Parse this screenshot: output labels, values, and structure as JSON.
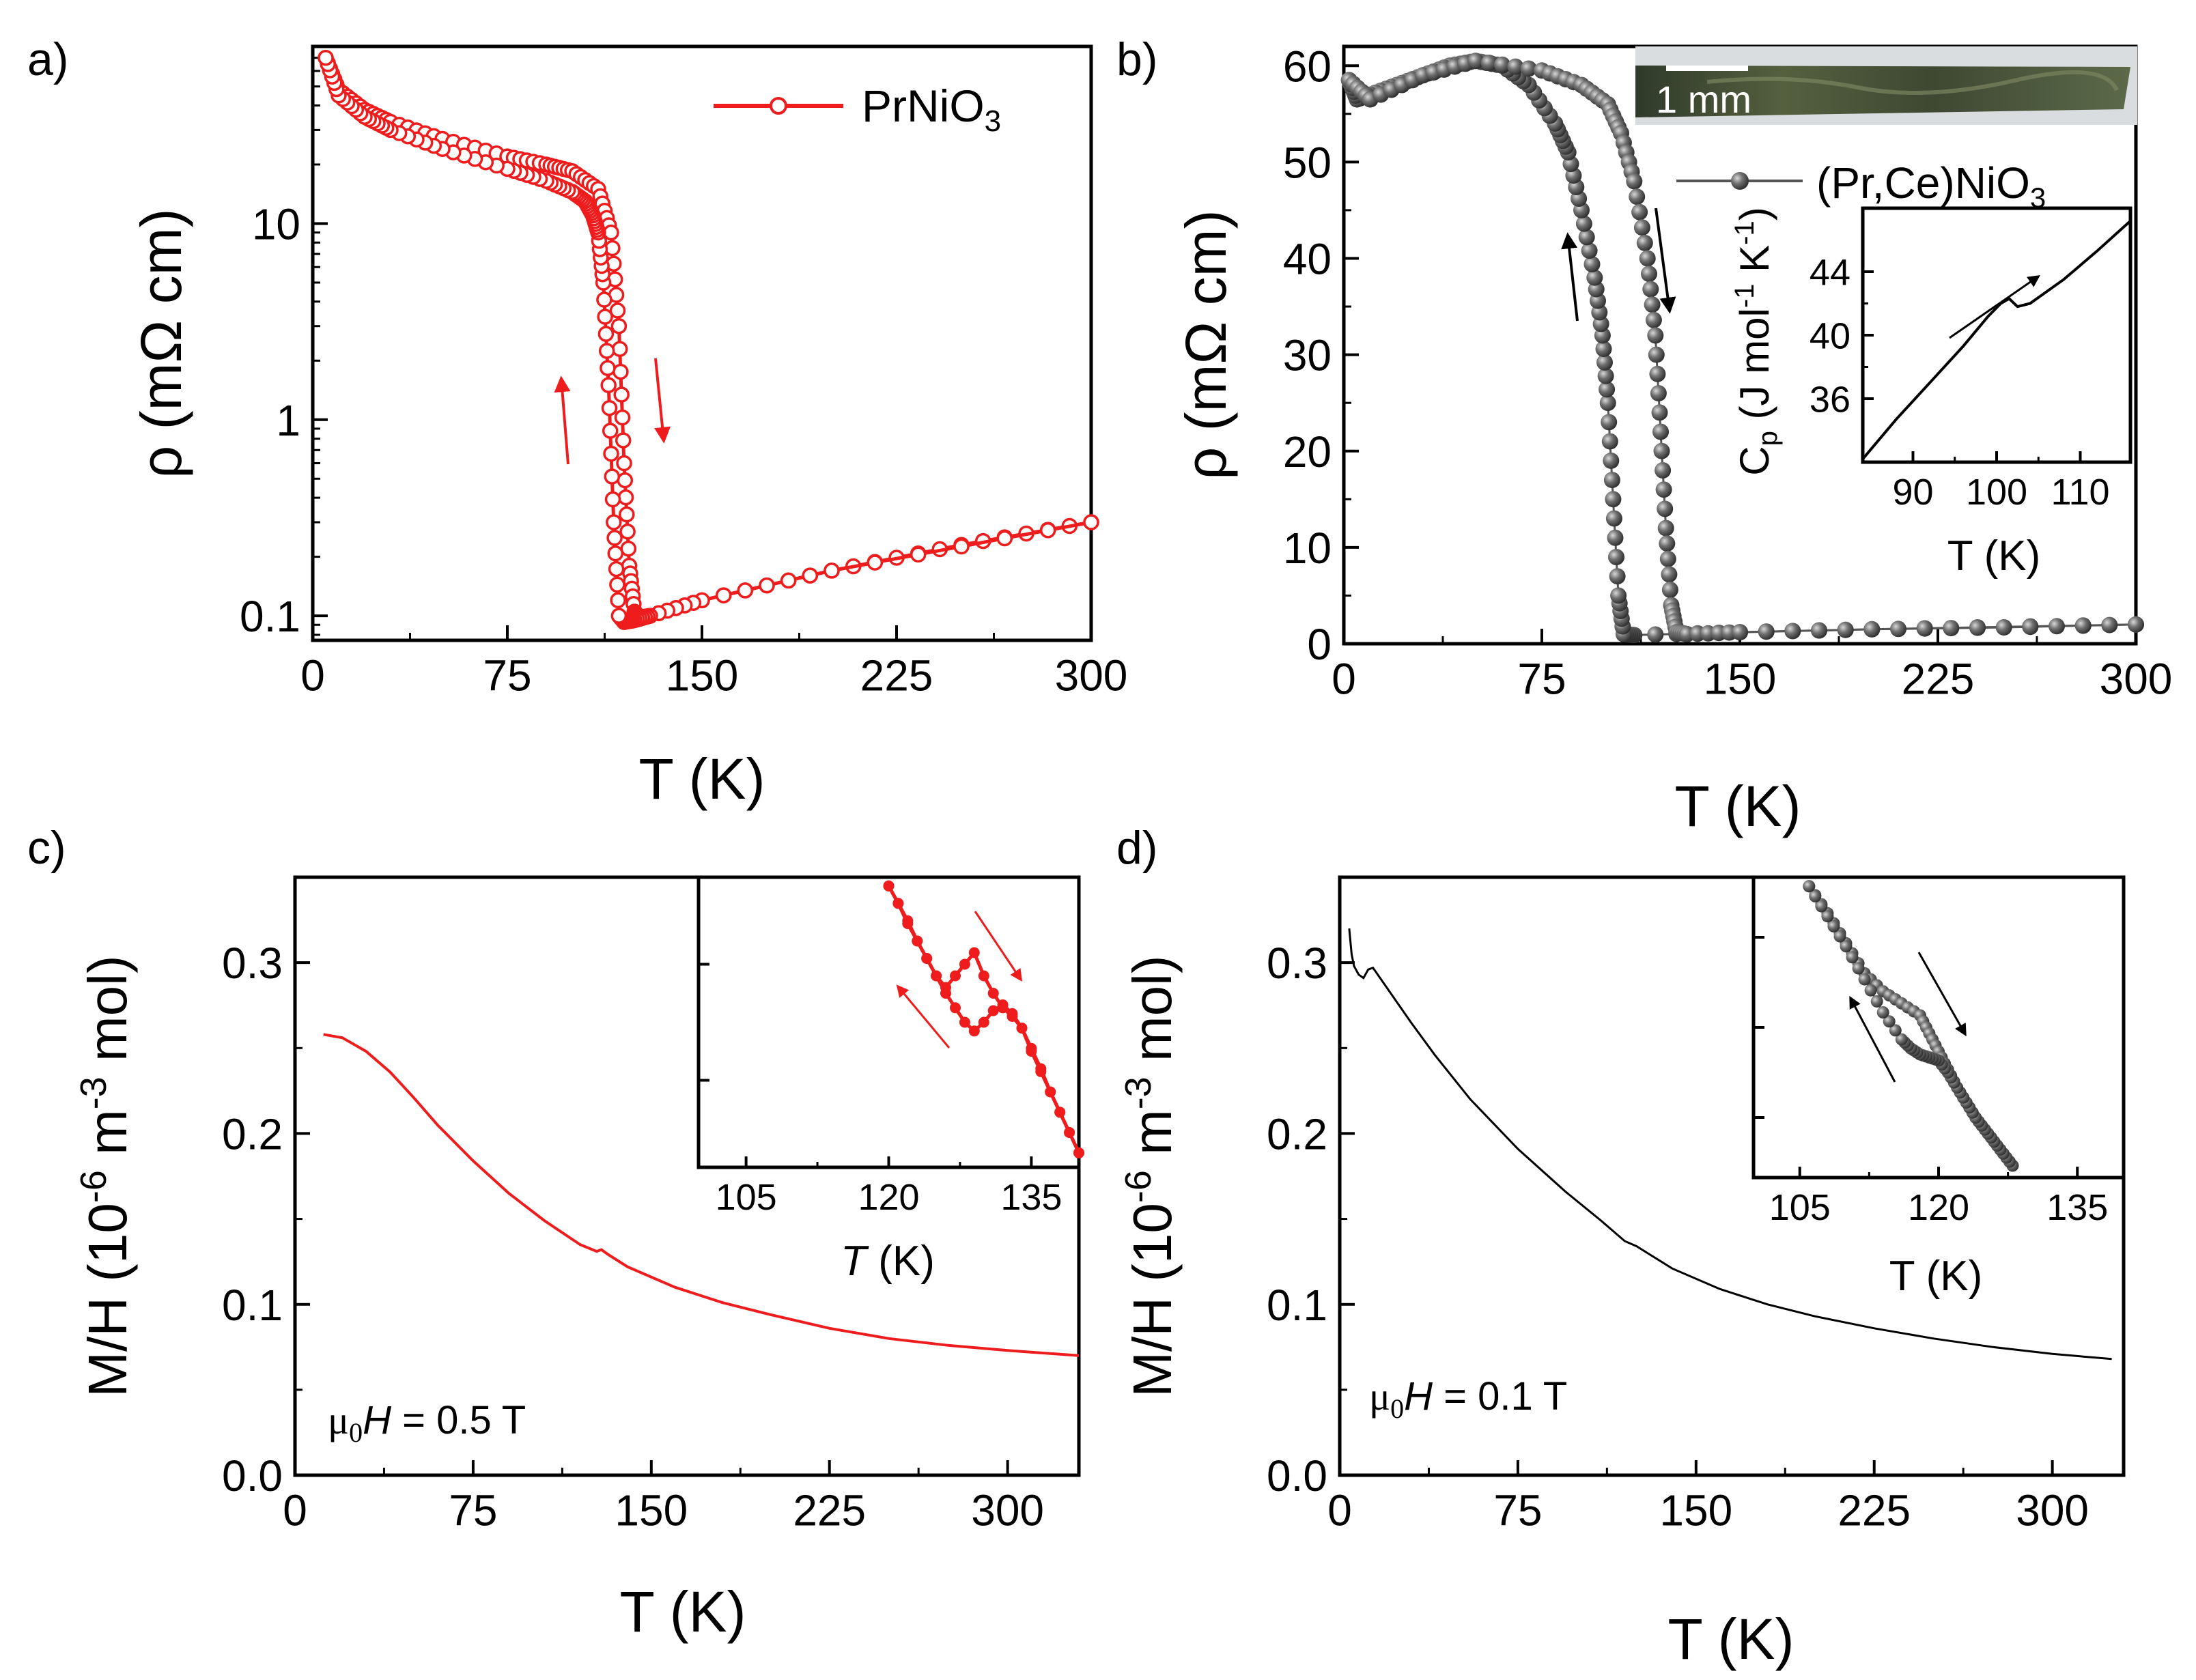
{
  "colors": {
    "red": "#ee1c1c",
    "gray": "#555555",
    "black": "#000000",
    "photo": "#3c4a34"
  },
  "chart_data": [
    {
      "id": "a",
      "panel_label": "a)",
      "type": "scatter",
      "scale": "log",
      "xlabel": "T (K)",
      "ylabel": "ρ (mΩ cm)",
      "xlim": [
        0,
        300
      ],
      "ylim": [
        0.075,
        80
      ],
      "xticks": [
        0,
        75,
        150,
        225,
        300
      ],
      "xtick_labels": [
        "0",
        "75",
        "150",
        "225",
        "300"
      ],
      "yticks": [
        0.1,
        1,
        10
      ],
      "ytick_labels": [
        "0.1",
        "1",
        "10"
      ],
      "legend": {
        "label_main": "PrNiO",
        "label_sub": "3",
        "position": "top-right"
      },
      "series": [
        {
          "name": "warming",
          "x": [
            5,
            10,
            20,
            30,
            50,
            75,
            90,
            100,
            110,
            115,
            118,
            120,
            122,
            124,
            126,
            130,
            150,
            200,
            250,
            300
          ],
          "y": [
            70,
            48,
            38,
            33,
            27,
            22,
            20,
            18.5,
            15,
            9,
            3,
            0.6,
            0.18,
            0.105,
            0.098,
            0.1,
            0.12,
            0.17,
            0.23,
            0.3
          ]
        },
        {
          "name": "cooling",
          "x": [
            300,
            200,
            150,
            130,
            124,
            120,
            118,
            116,
            114,
            112,
            110,
            108,
            105,
            100,
            90,
            75,
            50,
            30,
            20,
            10,
            5
          ],
          "y": [
            0.3,
            0.17,
            0.12,
            0.1,
            0.095,
            0.093,
            0.1,
            0.3,
            1.5,
            5,
            9,
            11,
            13,
            14.5,
            16.5,
            19,
            24,
            30,
            35,
            45,
            70
          ]
        }
      ],
      "annotations": [
        "warming arrow (down)",
        "cooling arrow (up)"
      ]
    },
    {
      "id": "b",
      "panel_label": "b)",
      "type": "scatter",
      "xlabel": "T (K)",
      "ylabel": "ρ (mΩ cm)",
      "xlim": [
        0,
        300
      ],
      "ylim": [
        0,
        62
      ],
      "xticks": [
        0,
        75,
        150,
        225,
        300
      ],
      "xtick_labels": [
        "0",
        "75",
        "150",
        "225",
        "300"
      ],
      "yticks": [
        0,
        10,
        20,
        30,
        40,
        50,
        60
      ],
      "ytick_labels": [
        "0",
        "10",
        "20",
        "30",
        "40",
        "50",
        "60"
      ],
      "legend": {
        "label": "(Pr,Ce)NiO",
        "label_sub": "3",
        "position": "top-right"
      },
      "photo_scale_label": "1 mm",
      "series": [
        {
          "name": "cooling",
          "x": [
            300,
            200,
            150,
            110,
            106,
            104,
            102,
            100,
            98,
            95,
            90,
            85,
            80,
            70,
            60,
            50,
            40,
            30,
            20,
            10,
            5,
            2
          ],
          "y": [
            2,
            1.5,
            1.2,
            0.9,
            1,
            5,
            15,
            25,
            32,
            38,
            45,
            51,
            54,
            58,
            60,
            60.5,
            60,
            59,
            58,
            57,
            56.5,
            58.5
          ]
        },
        {
          "name": "warming",
          "x": [
            2,
            10,
            30,
            50,
            75,
            90,
            100,
            105,
            110,
            115,
            118,
            120,
            122,
            124,
            126,
            130,
            150,
            200,
            250,
            300
          ],
          "y": [
            58.5,
            56.5,
            59,
            60.5,
            59.5,
            58,
            56,
            53,
            48,
            40,
            32,
            22,
            12,
            4,
            1.2,
            1,
            1.2,
            1.5,
            1.7,
            2
          ]
        }
      ]
    },
    {
      "id": "b_inset",
      "type": "line",
      "xlabel": "T (K)",
      "ylabel_main": "C",
      "ylabel_sub": "p",
      "ylabel_rest": " (J mol",
      "ylabel_sup1": "-1",
      "ylabel_mid": " K",
      "ylabel_sup2": "-1",
      "ylabel_end": ")",
      "xlim": [
        84,
        116
      ],
      "ylim": [
        32,
        48
      ],
      "xticks": [
        90,
        100,
        110
      ],
      "xtick_labels": [
        "90",
        "100",
        "110"
      ],
      "yticks": [
        36,
        40,
        44
      ],
      "ytick_labels": [
        "36",
        "40",
        "44"
      ],
      "x": [
        84,
        88,
        92,
        96,
        99,
        100.5,
        101.5,
        102.5,
        104,
        108,
        112,
        116
      ],
      "y": [
        32.2,
        34.7,
        37.0,
        39.3,
        41.2,
        42.0,
        42.3,
        41.8,
        42.0,
        43.5,
        45.3,
        47.2
      ]
    },
    {
      "id": "c",
      "panel_label": "c)",
      "type": "line",
      "xlabel": "T (K)",
      "ylabel_pre": "M/H (10",
      "ylabel_sup1": "-6",
      "ylabel_mid": " m",
      "ylabel_sup2": "-3",
      "ylabel_end": " mol)",
      "xlim": [
        0,
        330
      ],
      "ylim": [
        0,
        0.35
      ],
      "xticks": [
        0,
        75,
        150,
        225,
        300
      ],
      "xtick_labels": [
        "0",
        "75",
        "150",
        "225",
        "300"
      ],
      "yticks": [
        0,
        0.1,
        0.2,
        0.3
      ],
      "ytick_labels": [
        "0.0",
        "0.1",
        "0.2",
        "0.3"
      ],
      "field_mu": "μ",
      "field_sub": "0",
      "field_H": "H",
      "field_value": " = 0.5 T",
      "x": [
        12,
        20,
        30,
        40,
        50,
        60,
        75,
        90,
        105,
        120,
        127,
        129,
        132,
        140,
        160,
        180,
        200,
        225,
        250,
        275,
        300,
        330
      ],
      "y": [
        0.258,
        0.256,
        0.248,
        0.236,
        0.221,
        0.205,
        0.184,
        0.165,
        0.149,
        0.135,
        0.131,
        0.132,
        0.129,
        0.122,
        0.11,
        0.101,
        0.094,
        0.086,
        0.08,
        0.076,
        0.073,
        0.07
      ]
    },
    {
      "id": "c_inset",
      "type": "scatter",
      "xlabel_T": "T",
      "xlabel_rest": " (K)",
      "xlim": [
        100,
        140
      ],
      "ylim": [
        0,
        1
      ],
      "xticks": [
        105,
        120,
        135
      ],
      "xtick_labels": [
        "105",
        "120",
        "135"
      ],
      "series": [
        {
          "name": "warming",
          "x": [
            120,
            121,
            122,
            123,
            124,
            125,
            126,
            127,
            128,
            129,
            130,
            131,
            132,
            133,
            134,
            135,
            136,
            137,
            138,
            139,
            140
          ],
          "y": [
            0.97,
            0.91,
            0.85,
            0.78,
            0.72,
            0.66,
            0.62,
            0.66,
            0.7,
            0.74,
            0.66,
            0.6,
            0.55,
            0.52,
            0.48,
            0.41,
            0.34,
            0.26,
            0.19,
            0.12,
            0.05
          ]
        },
        {
          "name": "cooling",
          "x": [
            140,
            139,
            138,
            137,
            136,
            135,
            134,
            133,
            132,
            131,
            130,
            129,
            128,
            127,
            126,
            125,
            124,
            123,
            122,
            121,
            120
          ],
          "y": [
            0.05,
            0.12,
            0.19,
            0.26,
            0.33,
            0.4,
            0.48,
            0.53,
            0.56,
            0.54,
            0.5,
            0.47,
            0.5,
            0.55,
            0.6,
            0.66,
            0.72,
            0.78,
            0.84,
            0.91,
            0.97
          ]
        }
      ]
    },
    {
      "id": "d",
      "panel_label": "d)",
      "type": "line",
      "xlabel": "T (K)",
      "ylabel_pre": "M/H (10",
      "ylabel_sup1": "-6",
      "ylabel_mid": " m",
      "ylabel_sup2": "-3",
      "ylabel_end": " mol)",
      "xlim": [
        0,
        330
      ],
      "ylim": [
        0,
        0.35
      ],
      "xticks": [
        0,
        75,
        150,
        225,
        300
      ],
      "xtick_labels": [
        "0",
        "75",
        "150",
        "225",
        "300"
      ],
      "yticks": [
        0,
        0.1,
        0.2,
        0.3
      ],
      "ytick_labels": [
        "0.0",
        "0.1",
        "0.2",
        "0.3"
      ],
      "field_mu": "μ",
      "field_sub": "0",
      "field_H": "H",
      "field_value": " = 0.1 T",
      "x": [
        4,
        5,
        6,
        8,
        10,
        12,
        14,
        20,
        30,
        40,
        55,
        75,
        95,
        110,
        120,
        125,
        140,
        160,
        180,
        200,
        225,
        250,
        275,
        300,
        325
      ],
      "y": [
        0.32,
        0.305,
        0.298,
        0.293,
        0.291,
        0.296,
        0.297,
        0.285,
        0.265,
        0.246,
        0.22,
        0.191,
        0.166,
        0.149,
        0.137,
        0.134,
        0.121,
        0.109,
        0.1,
        0.093,
        0.086,
        0.08,
        0.075,
        0.071,
        0.068
      ]
    },
    {
      "id": "d_inset",
      "type": "scatter",
      "xlabel": "T (K)",
      "xlim": [
        100,
        140
      ],
      "ylim": [
        0,
        1
      ],
      "xticks": [
        105,
        120,
        135
      ],
      "xtick_labels": [
        "105",
        "120",
        "135"
      ],
      "series": [
        {
          "name": "warming",
          "x": [
            106,
            108,
            110,
            112,
            114,
            116,
            118,
            119,
            120,
            121,
            122,
            123,
            124,
            125,
            126,
            127,
            128
          ],
          "y": [
            0.97,
            0.88,
            0.78,
            0.68,
            0.62,
            0.58,
            0.54,
            0.48,
            0.42,
            0.36,
            0.3,
            0.25,
            0.2,
            0.16,
            0.12,
            0.08,
            0.04
          ]
        },
        {
          "name": "cooling",
          "x": [
            128,
            127,
            126,
            125,
            124,
            123,
            122,
            121,
            120,
            119,
            118,
            117,
            116,
            114,
            112,
            110,
            108,
            106
          ],
          "y": [
            0.04,
            0.08,
            0.12,
            0.16,
            0.2,
            0.25,
            0.3,
            0.35,
            0.39,
            0.4,
            0.41,
            0.43,
            0.46,
            0.55,
            0.66,
            0.77,
            0.87,
            0.97
          ]
        }
      ]
    }
  ]
}
